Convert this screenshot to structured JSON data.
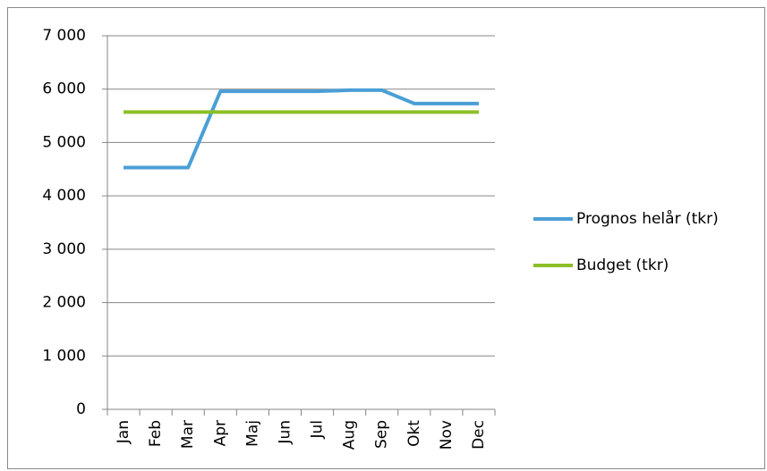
{
  "chart_data": {
    "type": "line",
    "categories": [
      "Jan",
      "Feb",
      "Mar",
      "Apr",
      "Maj",
      "Jun",
      "Jul",
      "Aug",
      "Sep",
      "Okt",
      "Nov",
      "Dec"
    ],
    "series": [
      {
        "name": "Prognos helår (tkr)",
        "color": "#4a9fd5",
        "values": [
          4530,
          4530,
          4530,
          5960,
          5960,
          5960,
          5960,
          5980,
          5980,
          5730,
          5730,
          5730
        ]
      },
      {
        "name": "Budget (tkr)",
        "color": "#8cbf26",
        "values": [
          5570,
          5570,
          5570,
          5570,
          5570,
          5570,
          5570,
          5570,
          5570,
          5570,
          5570,
          5570
        ]
      }
    ],
    "ylim": [
      0,
      7000
    ],
    "yticks": [
      0,
      {
        "value": 1000,
        "label": "1 000"
      },
      {
        "value": 2000,
        "label": "2 000"
      },
      {
        "value": 3000,
        "label": "3 000"
      },
      {
        "value": 4000,
        "label": "4 000"
      },
      {
        "value": 5000,
        "label": "5 000"
      },
      {
        "value": 6000,
        "label": "6 000"
      },
      {
        "value": 7000,
        "label": "7 000"
      }
    ],
    "grid": true,
    "legend": "right"
  }
}
